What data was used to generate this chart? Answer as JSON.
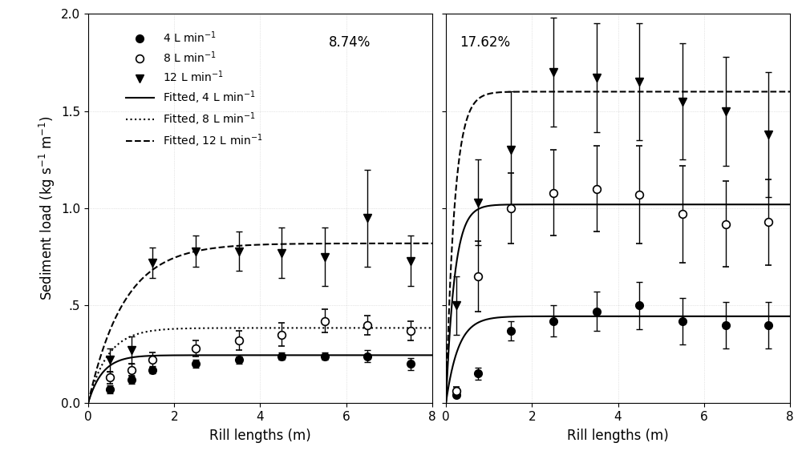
{
  "panel1_title": "8.74%",
  "panel2_title": "17.62%",
  "xlabel": "Rill lengths (m)",
  "ylabel": "Sediment load (kg s$^{-1}$ m$^{-1}$)",
  "xlim": [
    0,
    8
  ],
  "ylim": [
    0.0,
    2.0
  ],
  "yticks": [
    0.0,
    0.5,
    1.0,
    1.5,
    2.0
  ],
  "ytick_labels": [
    "0.0",
    ".5",
    "1.0",
    "1.5",
    "2.0"
  ],
  "xticks": [
    0,
    2,
    4,
    6,
    8
  ],
  "p1_4L_x": [
    0.5,
    1.0,
    1.5,
    2.5,
    3.5,
    4.5,
    5.5,
    6.5,
    7.5
  ],
  "p1_4L_y": [
    0.07,
    0.12,
    0.17,
    0.2,
    0.22,
    0.24,
    0.24,
    0.24,
    0.2
  ],
  "p1_4L_yerr": [
    0.02,
    0.02,
    0.02,
    0.02,
    0.02,
    0.02,
    0.02,
    0.03,
    0.03
  ],
  "p1_8L_x": [
    0.5,
    1.0,
    1.5,
    2.5,
    3.5,
    4.5,
    5.5,
    6.5,
    7.5
  ],
  "p1_8L_y": [
    0.13,
    0.17,
    0.22,
    0.28,
    0.32,
    0.35,
    0.42,
    0.4,
    0.37
  ],
  "p1_8L_yerr": [
    0.03,
    0.03,
    0.04,
    0.04,
    0.05,
    0.06,
    0.06,
    0.05,
    0.05
  ],
  "p1_12L_x": [
    0.5,
    1.0,
    1.5,
    2.5,
    3.5,
    4.5,
    5.5,
    6.5,
    7.5
  ],
  "p1_12L_y": [
    0.22,
    0.27,
    0.72,
    0.78,
    0.78,
    0.77,
    0.75,
    0.95,
    0.73
  ],
  "p1_12L_yerr": [
    0.06,
    0.07,
    0.08,
    0.08,
    0.1,
    0.13,
    0.15,
    0.25,
    0.13
  ],
  "p2_4L_x": [
    0.25,
    0.75,
    1.5,
    2.5,
    3.5,
    4.5,
    5.5,
    6.5,
    7.5
  ],
  "p2_4L_y": [
    0.04,
    0.15,
    0.37,
    0.42,
    0.47,
    0.5,
    0.42,
    0.4,
    0.4
  ],
  "p2_4L_yerr": [
    0.01,
    0.03,
    0.05,
    0.08,
    0.1,
    0.12,
    0.12,
    0.12,
    0.12
  ],
  "p2_8L_x": [
    0.25,
    0.75,
    1.5,
    2.5,
    3.5,
    4.5,
    5.5,
    6.5,
    7.5
  ],
  "p2_8L_y": [
    0.06,
    0.65,
    1.0,
    1.08,
    1.1,
    1.07,
    0.97,
    0.92,
    0.93
  ],
  "p2_8L_yerr": [
    0.02,
    0.18,
    0.18,
    0.22,
    0.22,
    0.25,
    0.25,
    0.22,
    0.22
  ],
  "p2_12L_x": [
    0.25,
    0.75,
    1.5,
    2.5,
    3.5,
    4.5,
    5.5,
    6.5,
    7.5
  ],
  "p2_12L_y": [
    0.5,
    1.03,
    1.3,
    1.7,
    1.67,
    1.65,
    1.55,
    1.5,
    1.38
  ],
  "p2_12L_yerr": [
    0.15,
    0.22,
    0.3,
    0.28,
    0.28,
    0.3,
    0.3,
    0.28,
    0.32
  ],
  "fit_p1_4L": {
    "a": 0.245,
    "b": 3.0
  },
  "fit_p1_8L": {
    "a": 0.385,
    "b": 2.2
  },
  "fit_p1_12L": {
    "a": 0.82,
    "b": 1.2
  },
  "fit_p2_4L": {
    "a": 0.445,
    "b": 3.5
  },
  "fit_p2_8L": {
    "a": 1.02,
    "b": 5.0
  },
  "fit_p2_12L": {
    "a": 1.6,
    "b": 5.0
  },
  "legend_labels": [
    "4 L min$^{-1}$",
    "8 L min$^{-1}$",
    "12 L min$^{-1}$",
    "Fitted, 4 L min$^{-1}$",
    "Fitted, 8 L min$^{-1}$",
    "Fitted, 12 L min$^{-1}$"
  ]
}
